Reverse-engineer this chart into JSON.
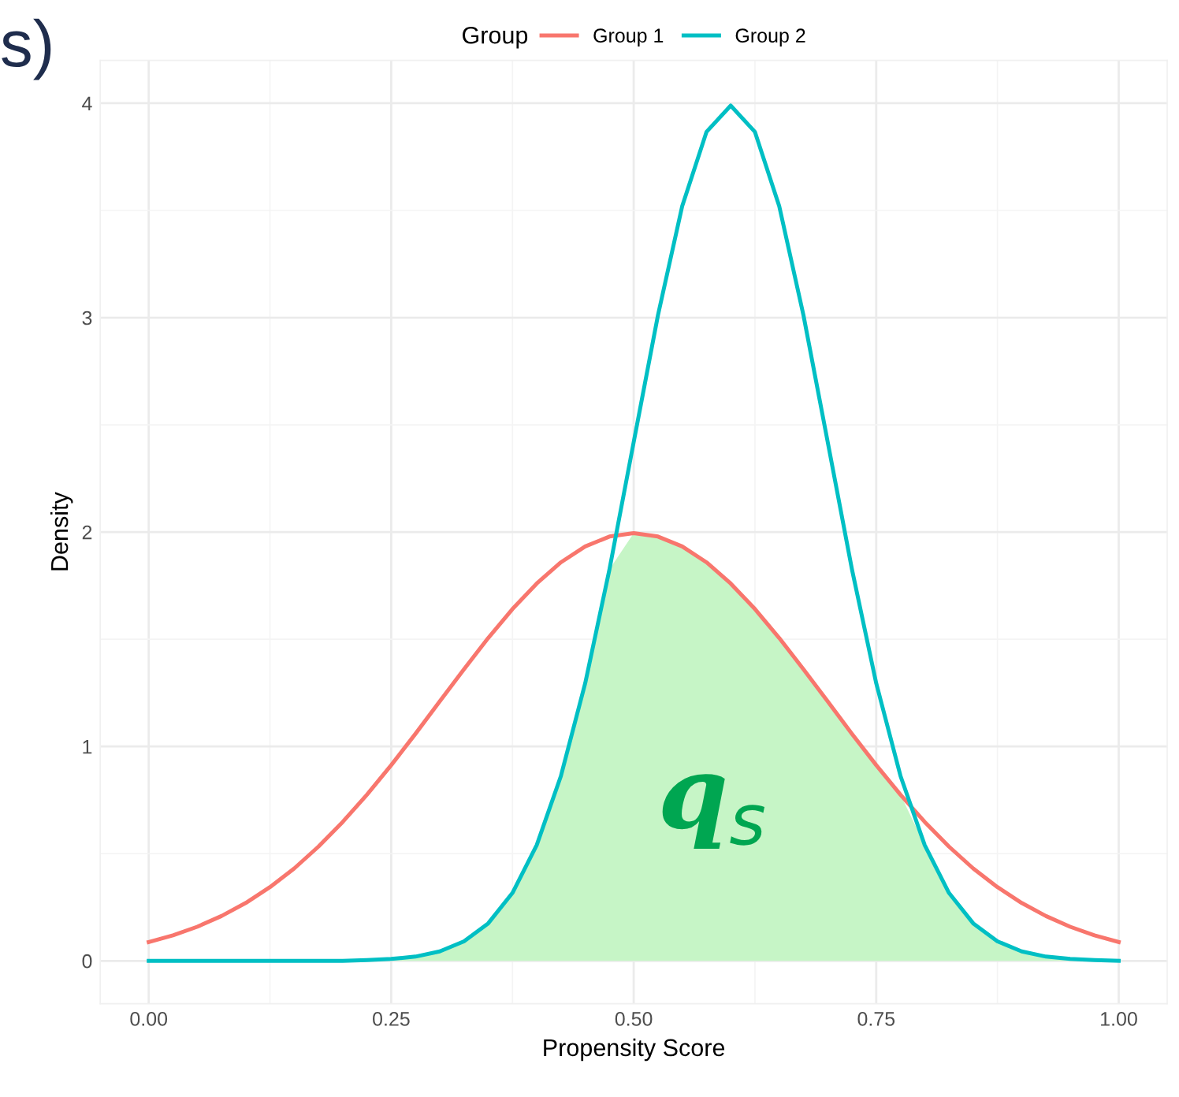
{
  "chart_data": {
    "type": "line",
    "title": "s)",
    "xlabel": "Propensity Score",
    "ylabel": "Density",
    "legend_title": "Group",
    "legend": "top",
    "x": [
      0,
      0.025,
      0.05,
      0.075,
      0.1,
      0.125,
      0.15,
      0.175,
      0.2,
      0.225,
      0.25,
      0.275,
      0.3,
      0.325,
      0.35,
      0.375,
      0.4,
      0.425,
      0.45,
      0.475,
      0.5,
      0.525,
      0.55,
      0.575,
      0.6,
      0.625,
      0.65,
      0.675,
      0.7,
      0.725,
      0.75,
      0.775,
      0.8,
      0.825,
      0.85,
      0.875,
      0.9,
      0.925,
      0.95,
      0.975,
      1
    ],
    "series": [
      {
        "type": "area",
        "color": "#c6f5c6",
        "values": [
          0,
          0,
          0,
          0,
          0,
          0,
          0,
          0,
          0,
          0.004,
          0.009,
          0.02,
          0.044,
          0.091,
          0.175,
          0.317,
          0.54,
          0.863,
          1.295,
          1.826,
          1.995,
          1.979,
          1.933,
          1.859,
          1.76,
          1.641,
          1.506,
          1.36,
          1.21,
          1.059,
          0.913,
          0.775,
          0.54,
          0.317,
          0.175,
          0.091,
          0.044,
          0.02,
          0.009,
          0.004,
          0
        ]
      },
      {
        "name": "Group 1",
        "color": "#f8766d",
        "values": [
          0.088,
          0.119,
          0.159,
          0.209,
          0.27,
          0.344,
          0.431,
          0.533,
          0.648,
          0.775,
          0.913,
          1.059,
          1.21,
          1.36,
          1.506,
          1.641,
          1.76,
          1.859,
          1.933,
          1.979,
          1.995,
          1.979,
          1.933,
          1.859,
          1.76,
          1.641,
          1.506,
          1.36,
          1.21,
          1.059,
          0.913,
          0.775,
          0.648,
          0.533,
          0.431,
          0.344,
          0.27,
          0.209,
          0.159,
          0.119,
          0.088
        ]
      },
      {
        "name": "Group 2",
        "color": "#00bfc4",
        "values": [
          0,
          0,
          0,
          0,
          0,
          0,
          0,
          0,
          0,
          0.004,
          0.009,
          0.02,
          0.044,
          0.091,
          0.175,
          0.317,
          0.54,
          0.863,
          1.295,
          1.826,
          2.42,
          3.011,
          3.52,
          3.866,
          3.989,
          3.866,
          3.52,
          3.011,
          2.42,
          1.826,
          1.295,
          0.863,
          0.54,
          0.317,
          0.175,
          0.091,
          0.044,
          0.02,
          0.009,
          0.004,
          0
        ]
      }
    ],
    "annotations": [
      "q$_{s}$"
    ],
    "xlim": [
      -0.05,
      1.05
    ],
    "ylim": [
      -0.2,
      4.2
    ],
    "xticks": [
      {
        "value": 0,
        "label": "0.00"
      },
      {
        "value": 0.25,
        "label": "0.25"
      },
      {
        "value": 0.5,
        "label": "0.50"
      },
      {
        "value": 0.75,
        "label": "0.75"
      },
      {
        "value": 1,
        "label": "1.00"
      }
    ],
    "yticks": [
      0,
      1,
      2,
      3,
      4
    ],
    "grid": true
  }
}
